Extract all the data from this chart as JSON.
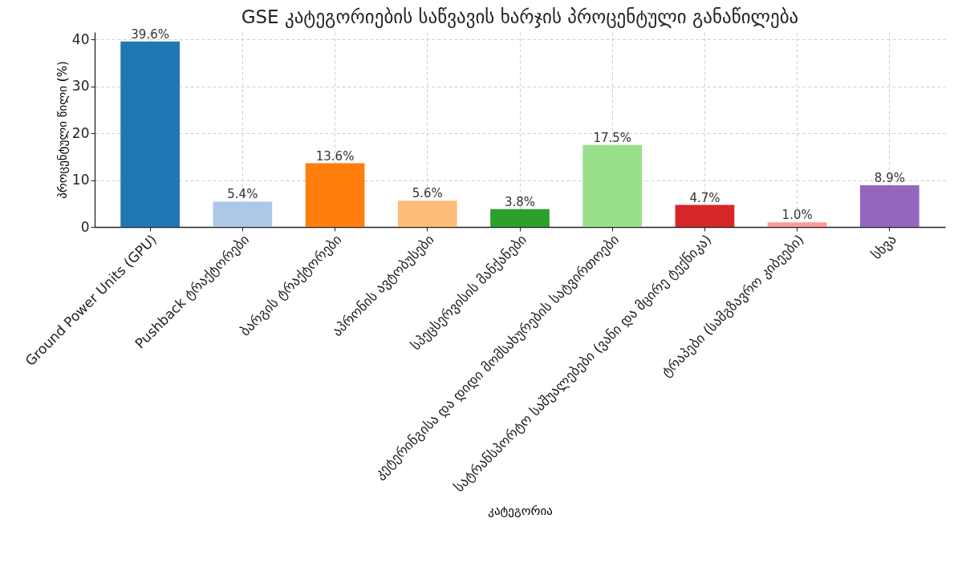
{
  "chart_data": {
    "type": "bar",
    "title": "GSE კატეგორიების საწვავის ხარჯის პროცენტული განაწილება",
    "xlabel": "კატეგორია",
    "ylabel": "პროცენტული წილი (%)",
    "categories": [
      "Ground Power Units (GPU)",
      "Pushback ტრაქტორები",
      "ბარგის ტრაქტორები",
      "აპრონის ავტობუსები",
      "სპეცსერვისის მანქანები",
      "კეტერინგისა და დიდი მომსახურების სატვირთოები",
      "სატრანსპორტო საშუალებები (ვანი და მცირე ტექნიკა)",
      "ტრაპები (სამგზავრო კიბეები)",
      "სხვა"
    ],
    "values": [
      39.6,
      5.4,
      13.6,
      5.6,
      3.8,
      17.5,
      4.7,
      1.0,
      8.9
    ],
    "value_labels": [
      "39.6%",
      "5.4%",
      "13.6%",
      "5.6%",
      "3.8%",
      "17.5%",
      "4.7%",
      "1.0%",
      "8.9%"
    ],
    "colors": [
      "#1f77b4",
      "#aec7e8",
      "#ff7f0e",
      "#ffbb78",
      "#2ca02c",
      "#98df8a",
      "#d62728",
      "#ff9896",
      "#9467bd"
    ],
    "ylim": [
      0,
      41.6
    ],
    "yticks": [
      0,
      10,
      20,
      30,
      40
    ],
    "grid": true
  }
}
